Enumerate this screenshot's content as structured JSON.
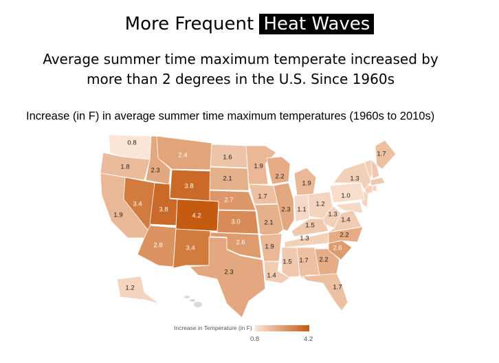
{
  "slide": {
    "title_prefix": "More Frequent",
    "title_highlight": "Heat Waves",
    "subtitle_line1": "Average summer time maximum temperate increased by",
    "subtitle_line2": "more than 2 degrees in the U.S. Since 1960s"
  },
  "map": {
    "title": "Increase (in F)  in average summer time maximum temperatures (1960s to 2010s)",
    "legend": {
      "title": "Increase in Temperature (in F)",
      "min": 0.8,
      "max": 4.2,
      "min_label": "0.8",
      "max_label": "4.2",
      "color_min": "#fbe5d6",
      "color_max": "#c55a11"
    },
    "no_data_color": "#d9d9d9",
    "states": [
      {
        "state": "WA",
        "value": 0.8,
        "label": "0.8"
      },
      {
        "state": "OR",
        "value": 1.8,
        "label": "1.8"
      },
      {
        "state": "CA",
        "value": 1.9,
        "label": "1.9"
      },
      {
        "state": "NV",
        "value": 3.4,
        "label": "3.4"
      },
      {
        "state": "ID",
        "value": 2.3,
        "label": "2.3"
      },
      {
        "state": "MT",
        "value": 2.4,
        "label": "2.4"
      },
      {
        "state": "WY",
        "value": 3.8,
        "label": "3.8"
      },
      {
        "state": "UT",
        "value": 3.8,
        "label": "3.8"
      },
      {
        "state": "CO",
        "value": 4.2,
        "label": "4.2"
      },
      {
        "state": "AZ",
        "value": 2.8,
        "label": "2.8"
      },
      {
        "state": "NM",
        "value": 3.4,
        "label": "3.4"
      },
      {
        "state": "ND",
        "value": 1.6,
        "label": "1.6"
      },
      {
        "state": "SD",
        "value": 2.1,
        "label": "2.1"
      },
      {
        "state": "NE",
        "value": 2.7,
        "label": "2.7"
      },
      {
        "state": "KS",
        "value": 3.0,
        "label": "3.0"
      },
      {
        "state": "OK",
        "value": 2.6,
        "label": "2.6"
      },
      {
        "state": "TX",
        "value": 2.3,
        "label": "2.3"
      },
      {
        "state": "MN",
        "value": 1.9,
        "label": "1.9"
      },
      {
        "state": "IA",
        "value": 1.7,
        "label": "1.7"
      },
      {
        "state": "MO",
        "value": 2.1,
        "label": "2.1"
      },
      {
        "state": "AR",
        "value": 1.9,
        "label": "1.9"
      },
      {
        "state": "LA",
        "value": 1.4,
        "label": "1.4"
      },
      {
        "state": "WI",
        "value": 2.2,
        "label": "2.2"
      },
      {
        "state": "IL",
        "value": 2.3,
        "label": "2.3"
      },
      {
        "state": "MI",
        "value": 1.9,
        "label": "1.9"
      },
      {
        "state": "IN",
        "value": 1.1,
        "label": "1.1"
      },
      {
        "state": "OH",
        "value": 1.2,
        "label": "1.2"
      },
      {
        "state": "KY",
        "value": 1.5,
        "label": "1.5"
      },
      {
        "state": "TN",
        "value": 1.3,
        "label": "1.3"
      },
      {
        "state": "MS",
        "value": 1.5,
        "label": "1.5"
      },
      {
        "state": "AL",
        "value": 1.7,
        "label": "1.7"
      },
      {
        "state": "GA",
        "value": 2.2,
        "label": "2.2"
      },
      {
        "state": "FL",
        "value": 1.7,
        "label": "1.7"
      },
      {
        "state": "SC",
        "value": 2.6,
        "label": "2.6"
      },
      {
        "state": "NC",
        "value": 2.2,
        "label": "2.2"
      },
      {
        "state": "VA",
        "value": 1.4,
        "label": "1.4"
      },
      {
        "state": "WV",
        "value": 1.3,
        "label": "1.3"
      },
      {
        "state": "PA",
        "value": 1.0,
        "label": "1.0"
      },
      {
        "state": "NY",
        "value": 1.3,
        "label": "1.3"
      },
      {
        "state": "ME",
        "value": 1.7,
        "label": "1.7"
      },
      {
        "state": "AK",
        "value": 1.2,
        "label": "1.2"
      }
    ]
  }
}
